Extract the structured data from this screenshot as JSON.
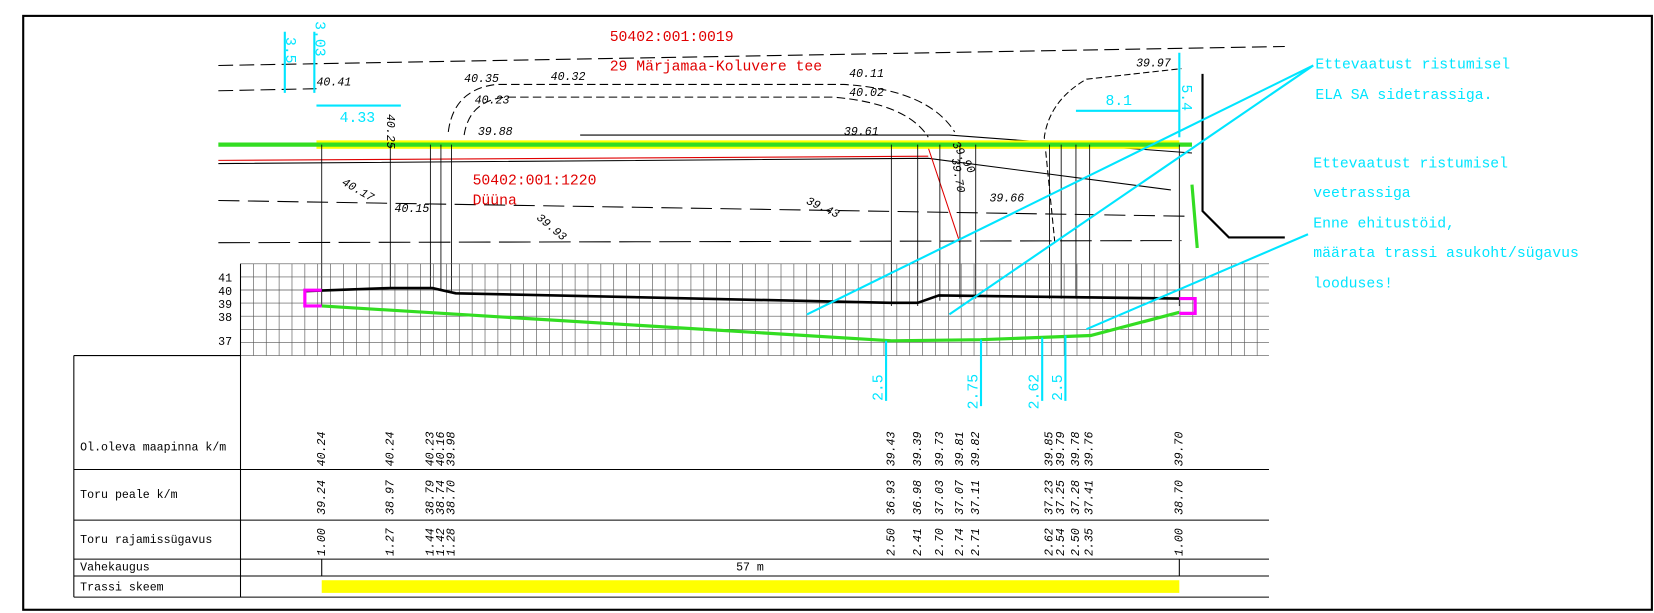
{
  "plan": {
    "cadastral_1": "50402:001:0019",
    "road": "29 Märjamaa-Koluvere tee",
    "cadastral_2": "50402:001:1220",
    "place": "Düüna",
    "elevations": [
      "40.41",
      "40.35",
      "40.32",
      "40.23",
      "40.11",
      "40.02",
      "39.97",
      "39.88",
      "39.61",
      "39.90",
      "39.70",
      "39.66",
      "39.93",
      "39.43",
      "40.17",
      "40.15",
      "40.25"
    ],
    "dimensions": [
      "3.5",
      "3.03",
      "4.33",
      "8.1",
      "5.4"
    ]
  },
  "notes": {
    "ela": [
      "Ettevaatust ristumisel",
      "ELA SA sidetrassiga."
    ],
    "water": [
      "Ettevaatust ristumisel",
      "veetrassiga"
    ],
    "build": [
      "Enne ehitustöid,",
      "määrata trassi asukoht/sügavus",
      "looduses!"
    ]
  },
  "profile": {
    "levels": [
      "41",
      "40",
      "39",
      "38",
      "37"
    ],
    "depths": [
      "2.5",
      "2.75",
      "2.62",
      "2.5"
    ]
  },
  "table": {
    "rows": [
      "Ol.oleva maapinna k/m",
      "Toru peale k/m",
      "Toru rajamissügavus",
      "Vahekaugus",
      "Trassi skeem"
    ],
    "ground": [
      "40.24",
      "40.24",
      "40.23",
      "40.16",
      "39.98",
      "39.43",
      "39.39",
      "39.73",
      "39.81",
      "39.82",
      "39.85",
      "39.79",
      "39.78",
      "39.76",
      "39.70"
    ],
    "pipe_top": [
      "39.24",
      "38.97",
      "38.79",
      "38.74",
      "38.70",
      "36.93",
      "36.98",
      "37.03",
      "37.07",
      "37.11",
      "37.23",
      "37.25",
      "37.28",
      "37.41",
      "38.70"
    ],
    "depth": [
      "1.00",
      "1.27",
      "1.44",
      "1.42",
      "1.28",
      "2.50",
      "2.41",
      "2.70",
      "2.74",
      "2.71",
      "2.62",
      "2.54",
      "2.50",
      "2.35",
      "1.00"
    ],
    "distance": "57 m"
  }
}
